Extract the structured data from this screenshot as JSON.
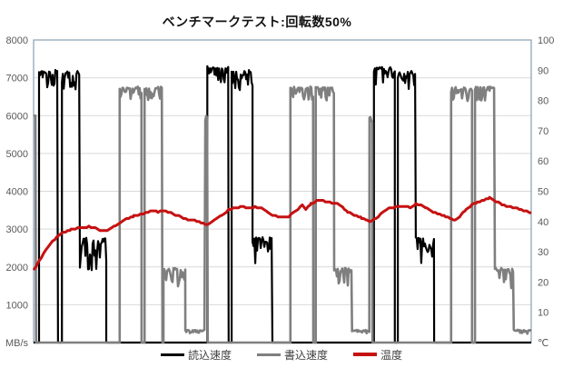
{
  "chart": {
    "title": "ベンチマークテスト:回転数50%",
    "background": "#FFFFFF"
  },
  "chart_data": {
    "type": "line",
    "title": "ベンチマークテスト:回転数50%",
    "x_axis": {
      "tick_labels": [],
      "note_visible_labels": "none"
    },
    "y_left": {
      "label": "MB/s",
      "range": [
        0,
        8000
      ],
      "ticks": [
        8000,
        7000,
        6000,
        5000,
        4000,
        3000,
        2000,
        1000
      ],
      "gridlines": [
        7000,
        6000,
        5000,
        4000,
        3000,
        2000,
        1000
      ]
    },
    "y_right": {
      "label": "℃",
      "range": [
        0,
        100
      ],
      "ticks": [
        100,
        90,
        80,
        70,
        60,
        50,
        40,
        30,
        20,
        10
      ]
    },
    "legend_position": "bottom",
    "colors": {
      "gridline": "#D9D9D9",
      "border": "#85A0B5",
      "tick_label": "#595959",
      "title": "#111111"
    },
    "series": [
      {
        "name": "読込速度",
        "axis": "left",
        "unit": "MB/s",
        "color": "#000000",
        "kind": "step",
        "width": 2.2,
        "segments_comment": "[t_start, t_end, value_MBs, jitter_up, jitter_down]; value is 0 outside segments",
        "segments": [
          [
            0.011,
            0.049,
            7150,
            70,
            450
          ],
          [
            0.057,
            0.093,
            7120,
            70,
            520
          ],
          [
            0.093,
            0.146,
            2745,
            40,
            850
          ],
          [
            0.349,
            0.392,
            7250,
            60,
            420
          ],
          [
            0.398,
            0.44,
            7150,
            60,
            520
          ],
          [
            0.44,
            0.48,
            2745,
            40,
            750
          ],
          [
            0.684,
            0.726,
            7230,
            60,
            430
          ],
          [
            0.732,
            0.768,
            7120,
            60,
            520
          ],
          [
            0.768,
            0.805,
            2745,
            40,
            800
          ]
        ]
      },
      {
        "name": "書込速度",
        "axis": "left",
        "unit": "MB/s",
        "color": "#7F7F7F",
        "kind": "step",
        "width": 2.6,
        "segments": [
          [
            0.0,
            0.005,
            6000,
            0,
            350
          ],
          [
            0.173,
            0.217,
            6720,
            50,
            380
          ],
          [
            0.223,
            0.259,
            6720,
            50,
            380
          ],
          [
            0.261,
            0.305,
            1920,
            60,
            480
          ],
          [
            0.305,
            0.345,
            300,
            40,
            90
          ],
          [
            0.345,
            0.35,
            6000,
            0,
            350
          ],
          [
            0.516,
            0.562,
            6720,
            50,
            380
          ],
          [
            0.567,
            0.604,
            6720,
            50,
            380
          ],
          [
            0.604,
            0.64,
            1920,
            60,
            480
          ],
          [
            0.64,
            0.675,
            300,
            40,
            90
          ],
          [
            0.675,
            0.681,
            5980,
            0,
            350
          ],
          [
            0.839,
            0.881,
            6720,
            50,
            380
          ],
          [
            0.887,
            0.927,
            6720,
            50,
            380
          ],
          [
            0.927,
            0.965,
            1920,
            60,
            500
          ],
          [
            0.965,
            1.0,
            300,
            40,
            90
          ]
        ]
      },
      {
        "name": "温度",
        "axis": "right",
        "unit": "℃",
        "color": "#C61111",
        "kind": "line",
        "width": 3,
        "points_comment": "[t (0-1 of time axis), temperature_C]",
        "points": [
          [
            0.0,
            24.0
          ],
          [
            0.011,
            27.0
          ],
          [
            0.024,
            30.5
          ],
          [
            0.038,
            33.5
          ],
          [
            0.055,
            36.0
          ],
          [
            0.075,
            37.3
          ],
          [
            0.093,
            38.0
          ],
          [
            0.111,
            38.3
          ],
          [
            0.124,
            37.8
          ],
          [
            0.137,
            36.8
          ],
          [
            0.148,
            37.2
          ],
          [
            0.164,
            38.6
          ],
          [
            0.182,
            40.5
          ],
          [
            0.201,
            41.8
          ],
          [
            0.221,
            42.7
          ],
          [
            0.237,
            43.4
          ],
          [
            0.25,
            43.2
          ],
          [
            0.261,
            43.5
          ],
          [
            0.276,
            42.8
          ],
          [
            0.292,
            41.8
          ],
          [
            0.31,
            40.7
          ],
          [
            0.328,
            40.2
          ],
          [
            0.341,
            39.5
          ],
          [
            0.35,
            39.0
          ],
          [
            0.363,
            40.3
          ],
          [
            0.378,
            42.0
          ],
          [
            0.392,
            43.8
          ],
          [
            0.407,
            44.6
          ],
          [
            0.422,
            45.0
          ],
          [
            0.432,
            44.4
          ],
          [
            0.445,
            44.8
          ],
          [
            0.458,
            44.6
          ],
          [
            0.471,
            43.0
          ],
          [
            0.482,
            41.9
          ],
          [
            0.498,
            41.6
          ],
          [
            0.513,
            41.7
          ],
          [
            0.527,
            43.5
          ],
          [
            0.54,
            45.4
          ],
          [
            0.547,
            43.9
          ],
          [
            0.557,
            45.8
          ],
          [
            0.569,
            46.8
          ],
          [
            0.582,
            46.9
          ],
          [
            0.595,
            46.4
          ],
          [
            0.61,
            45.9
          ],
          [
            0.62,
            44.9
          ],
          [
            0.631,
            43.2
          ],
          [
            0.644,
            42.2
          ],
          [
            0.659,
            41.2
          ],
          [
            0.67,
            40.3
          ],
          [
            0.677,
            39.8
          ],
          [
            0.688,
            41.0
          ],
          [
            0.701,
            43.0
          ],
          [
            0.714,
            44.3
          ],
          [
            0.728,
            44.8
          ],
          [
            0.743,
            45.0
          ],
          [
            0.757,
            44.7
          ],
          [
            0.768,
            45.8
          ],
          [
            0.779,
            45.5
          ],
          [
            0.79,
            44.4
          ],
          [
            0.803,
            43.1
          ],
          [
            0.816,
            42.4
          ],
          [
            0.828,
            41.6
          ],
          [
            0.839,
            40.9
          ],
          [
            0.847,
            40.4
          ],
          [
            0.858,
            42.0
          ],
          [
            0.869,
            44.0
          ],
          [
            0.88,
            45.5
          ],
          [
            0.892,
            46.3
          ],
          [
            0.905,
            47.2
          ],
          [
            0.916,
            47.8
          ],
          [
            0.929,
            46.7
          ],
          [
            0.941,
            45.6
          ],
          [
            0.954,
            45.0
          ],
          [
            0.967,
            44.6
          ],
          [
            0.98,
            44.0
          ],
          [
            0.991,
            43.3
          ],
          [
            1.0,
            42.8
          ]
        ]
      }
    ]
  }
}
